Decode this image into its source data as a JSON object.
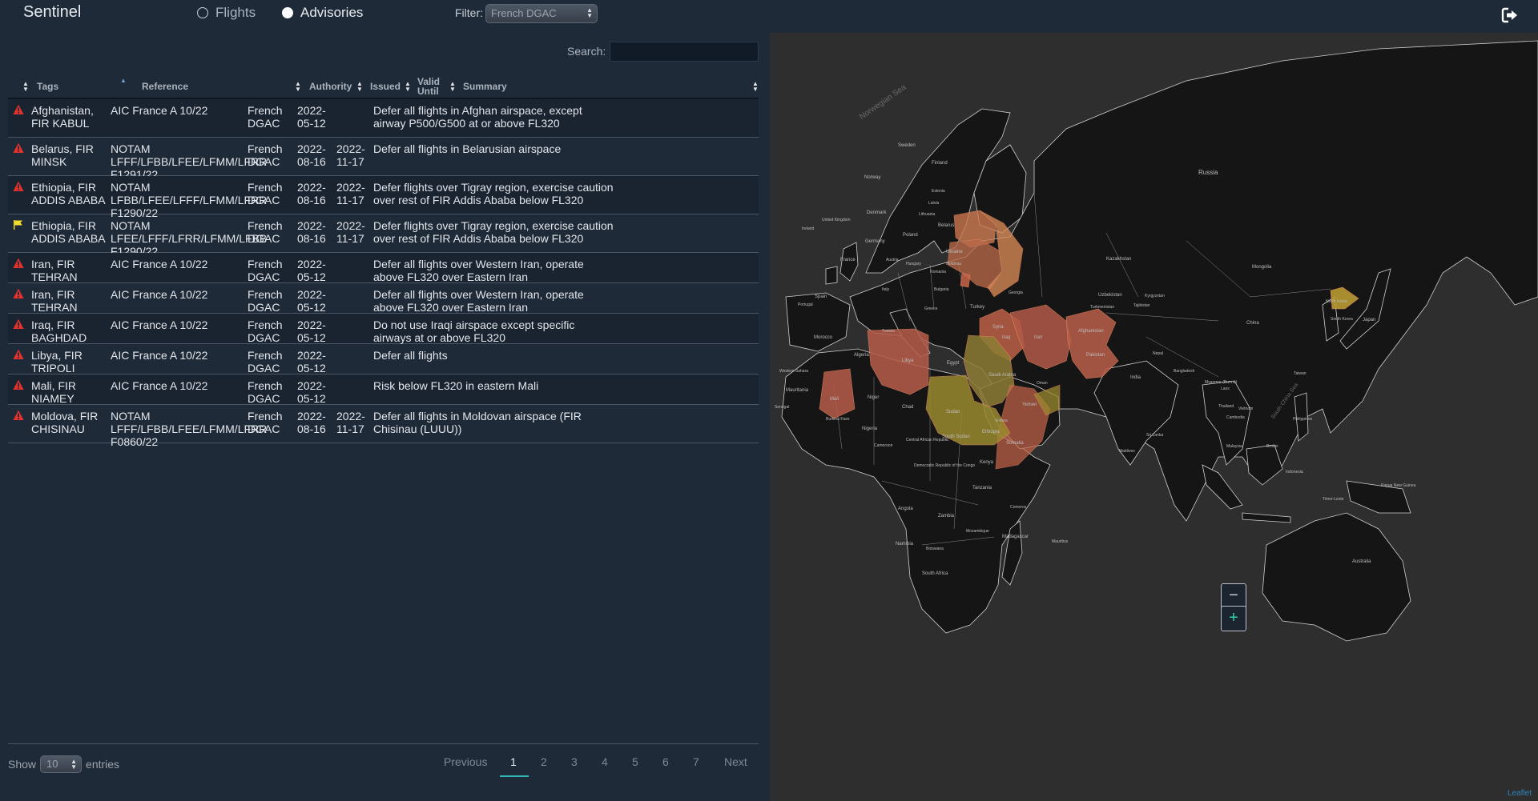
{
  "app": {
    "title": "Sentinel"
  },
  "mode": {
    "flights_label": "Flights",
    "advisories_label": "Advisories",
    "selected": "advisories"
  },
  "filter": {
    "label": "Filter:",
    "value": "French DGAC"
  },
  "search": {
    "label": "Search:"
  },
  "table": {
    "headers": {
      "tags": "Tags",
      "reference": "Reference",
      "authority": "Authority",
      "issued": "Issued",
      "valid_until": "Valid Until",
      "summary": "Summary"
    },
    "rows": [
      {
        "flag": "warning",
        "tags": "Afghanistan, FIR KABUL",
        "reference": "AIC France A 10/22",
        "authority": "French DGAC",
        "issued": "2022-05-12",
        "valid_until": "",
        "summary": "Defer all flights in Afghan airspace, except airway P500/G500 at or above FL320"
      },
      {
        "flag": "warning",
        "tags": "Belarus, FIR MINSK",
        "reference": "NOTAM LFFF/LFBB/LFEE/LFMM/LFRR F1291/22",
        "authority": "French DGAC",
        "issued": "2022-08-16",
        "valid_until": "2022-11-17",
        "summary": "Defer all flights in Belarusian airspace"
      },
      {
        "flag": "warning",
        "tags": "Ethiopia, FIR ADDIS ABABA",
        "reference": "NOTAM LFBB/LFEE/LFFF/LFMM/LFRR F1290/22",
        "authority": "French DGAC",
        "issued": "2022-08-16",
        "valid_until": "2022-11-17",
        "summary": "Defer flights over Tigray region, exercise caution over rest of FIR Addis Ababa below FL320"
      },
      {
        "flag": "caution",
        "tags": "Ethiopia, FIR ADDIS ABABA",
        "reference": "NOTAM LFEE/LFFF/LFRR/LFMM/LFBB F1290/22",
        "authority": "French DGAC",
        "issued": "2022-08-16",
        "valid_until": "2022-11-17",
        "summary": "Defer flights over Tigray region, exercise caution over rest of FIR Addis Ababa below FL320"
      },
      {
        "flag": "warning",
        "tags": "Iran, FIR TEHRAN",
        "reference": "AIC France A 10/22",
        "authority": "French DGAC",
        "issued": "2022-05-12",
        "valid_until": "",
        "summary": "Defer all flights over Western Iran, operate above FL320 over Eastern Iran"
      },
      {
        "flag": "warning",
        "tags": "Iran, FIR TEHRAN",
        "reference": "AIC France A 10/22",
        "authority": "French DGAC",
        "issued": "2022-05-12",
        "valid_until": "",
        "summary": "Defer all flights over Western Iran, operate above FL320 over Eastern Iran"
      },
      {
        "flag": "warning",
        "tags": "Iraq, FIR BAGHDAD",
        "reference": "AIC France A 10/22",
        "authority": "French DGAC",
        "issued": "2022-05-12",
        "valid_until": "",
        "summary": "Do not use Iraqi airspace except specific airways at or above FL320"
      },
      {
        "flag": "warning",
        "tags": "Libya, FIR TRIPOLI",
        "reference": "AIC France A 10/22",
        "authority": "French DGAC",
        "issued": "2022-05-12",
        "valid_until": "",
        "summary": "Defer all flights"
      },
      {
        "flag": "warning",
        "tags": "Mali, FIR NIAMEY",
        "reference": "AIC France A 10/22",
        "authority": "French DGAC",
        "issued": "2022-05-12",
        "valid_until": "",
        "summary": "Risk below FL320 in eastern Mali"
      },
      {
        "flag": "warning",
        "tags": "Moldova, FIR CHISINAU",
        "reference": "NOTAM LFFF/LFBB/LFEE/LFMM/LFRR F0860/22",
        "authority": "French DGAC",
        "issued": "2022-08-16",
        "valid_until": "2022-11-17",
        "summary": "Defer all flights in Moldovan airspace (FIR Chisinau (LUUU))"
      }
    ]
  },
  "length": {
    "show_label": "Show",
    "value": "10",
    "entries_label": "entries"
  },
  "pagination": {
    "previous": "Previous",
    "pages": [
      "1",
      "2",
      "3",
      "4",
      "5",
      "6",
      "7"
    ],
    "current": "1",
    "next": "Next"
  },
  "map": {
    "labels": {
      "norwegian_sea": "Norwegian Sea",
      "russia": "Russia",
      "sweden": "Sweden",
      "finland": "Finland",
      "norway": "Norway",
      "estonia": "Estonia",
      "latvia": "Latvia",
      "lithuania": "Lithuania",
      "denmark": "Denmark",
      "united_kingdom": "United Kingdom",
      "ireland": "Ireland",
      "belarus": "Belarus",
      "poland": "Poland",
      "germany": "Germany",
      "ukraine": "Ukraine",
      "france": "France",
      "austria": "Austria",
      "hungary": "Hungary",
      "romania": "Romania",
      "moldova": "Moldova",
      "italy": "Italy",
      "spain": "Spain",
      "portugal": "Portugal",
      "greece": "Greece",
      "bulgaria": "Bulgaria",
      "turkey": "Turkey",
      "georgia": "Georgia",
      "kazakhstan": "Kazakhstan",
      "mongolia": "Mongolia",
      "uzbekistan": "Uzbekistan",
      "kyrgyzstan": "Kyrgyzstan",
      "turkmenistan": "Turkmenistan",
      "tajikistan": "Tajikistan",
      "north_korea": "North Korea",
      "south_korea": "South Korea",
      "japan": "Japan",
      "china": "China",
      "syria": "Syria",
      "iraq": "Iraq",
      "iran": "Iran",
      "afghanistan": "Afghanistan",
      "pakistan": "Pakistan",
      "tunisia": "Tunisia",
      "morocco": "Morocco",
      "algeria": "Algeria",
      "libya": "Libya",
      "egypt": "Egypt",
      "saudi_arabia": "Saudi Arabia",
      "oman": "Oman",
      "yemen": "Yemen",
      "western_sahara": "Western Sahara",
      "mauritania": "Mauritania",
      "mali": "Mali",
      "niger": "Niger",
      "chad": "Chad",
      "sudan": "Sudan",
      "senegal": "Senegal",
      "burkina_faso": "Burkina Faso",
      "nigeria": "Nigeria",
      "eritrea": "Eritrea",
      "ethiopia": "Ethiopia",
      "somalia": "Somalia",
      "south_sudan": "South Sudan",
      "cameroon": "Cameroon",
      "car": "Central African Republic",
      "drc": "Democratic Republic of the Congo",
      "kenya": "Kenya",
      "tanzania": "Tanzania",
      "angola": "Angola",
      "zambia": "Zambia",
      "mozambique": "Mozambique",
      "namibia": "Namibia",
      "botswana": "Botswana",
      "south_africa": "South Africa",
      "madagascar": "Madagascar",
      "india": "India",
      "nepal": "Nepal",
      "bangladesh": "Bangladesh",
      "myanmar": "Myanmar (Burma)",
      "laos": "Laos",
      "thailand": "Thailand",
      "vietnam": "Vietnam",
      "cambodia": "Cambodia",
      "philippines": "Philippines",
      "taiwan": "Taiwan",
      "sri_lanka": "Sri Lanka",
      "maldives": "Maldives",
      "malaysia": "Malaysia",
      "brunei": "Brunei",
      "indonesia": "Indonesia",
      "papua_new_guinea": "Papua New Guinea",
      "australia": "Australia",
      "south_china_sea": "South China Sea",
      "timor_leste": "Timor-Leste",
      "comoros": "Comoros",
      "mauritius": "Mauritius"
    },
    "attribution": "Leaflet",
    "colors": {
      "warning": "#c8664a",
      "caution": "#9a8a2f",
      "land": "#151515",
      "water": "#2e2e2e",
      "border": "#cfcfcf"
    }
  }
}
